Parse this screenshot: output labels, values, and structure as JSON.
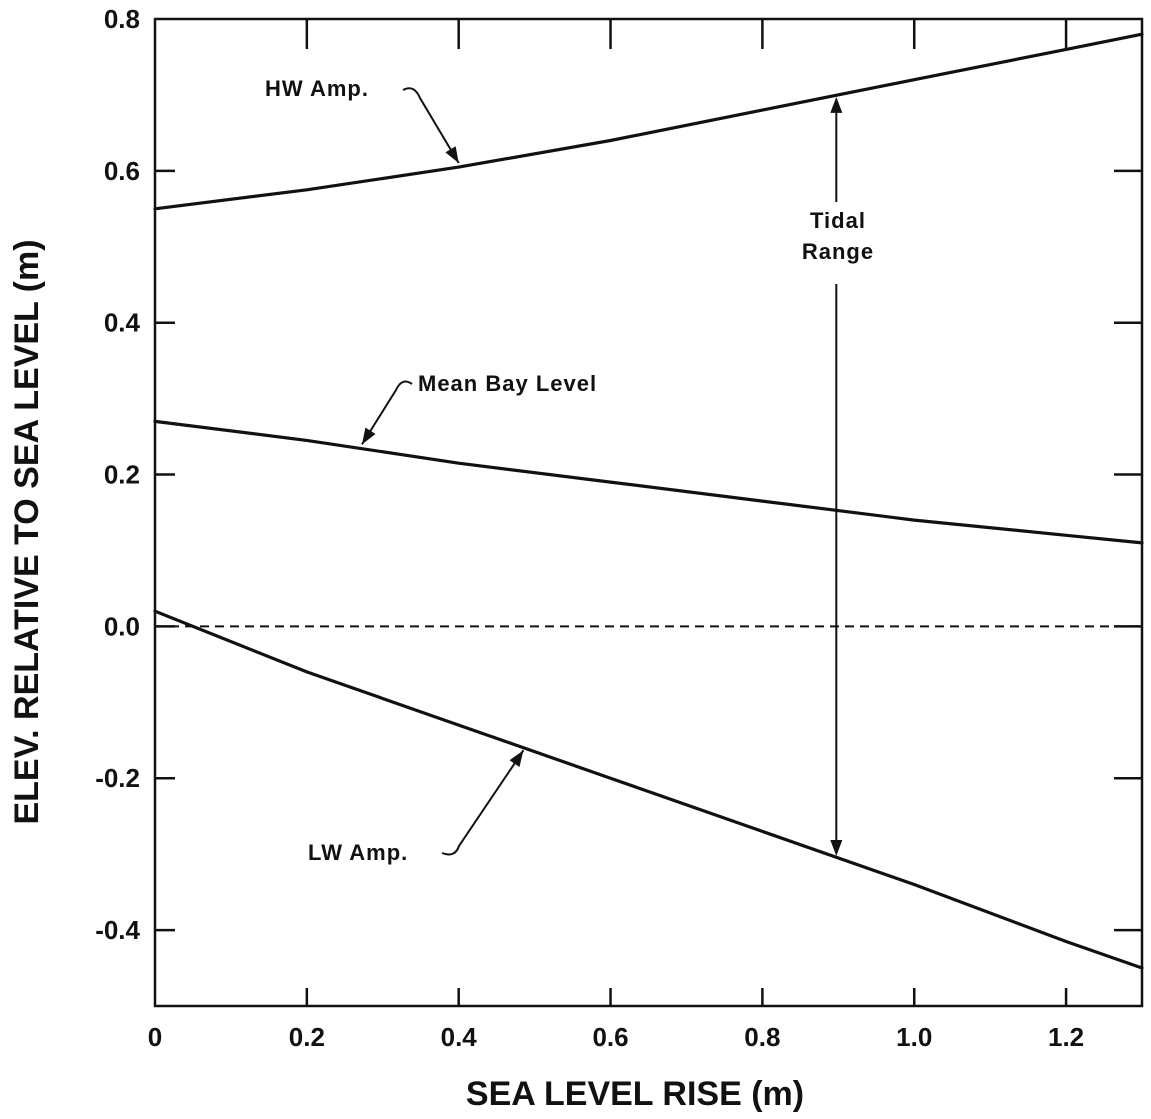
{
  "chart_data": {
    "type": "line",
    "title": "",
    "xlabel": "SEA LEVEL RISE (m)",
    "ylabel": "ELEV. RELATIVE TO SEA LEVEL (m)",
    "xlim": [
      0,
      1.3
    ],
    "ylim": [
      -0.5,
      0.8
    ],
    "x_ticks": [
      "0",
      "0.2",
      "0.4",
      "0.6",
      "0.8",
      "1.0",
      "1.2"
    ],
    "y_ticks": [
      "0.8",
      "0.6",
      "0.4",
      "0.2",
      "0.0",
      "-0.2",
      "-0.4"
    ],
    "grid": false,
    "series": [
      {
        "name": "HW Amp.",
        "x": [
          0,
          0.2,
          0.4,
          0.6,
          0.8,
          1.0,
          1.2,
          1.3
        ],
        "y": [
          0.55,
          0.575,
          0.605,
          0.64,
          0.68,
          0.72,
          0.76,
          0.78
        ]
      },
      {
        "name": "Mean Bay Level",
        "x": [
          0,
          0.2,
          0.4,
          0.6,
          0.8,
          1.0,
          1.2,
          1.3
        ],
        "y": [
          0.27,
          0.245,
          0.215,
          0.19,
          0.165,
          0.14,
          0.12,
          0.11
        ]
      },
      {
        "name": "LW Amp.",
        "x": [
          0,
          0.2,
          0.4,
          0.6,
          0.8,
          1.0,
          1.2,
          1.3
        ],
        "y": [
          0.02,
          -0.06,
          -0.13,
          -0.2,
          -0.27,
          -0.34,
          -0.415,
          -0.45
        ]
      }
    ],
    "reference_line": {
      "y": 0.0,
      "style": "dashed"
    },
    "annotations": [
      {
        "text": "HW Amp.",
        "target_series": "HW Amp.",
        "at_x": 0.4
      },
      {
        "text": "Mean Bay Level",
        "target_series": "Mean Bay Level",
        "at_x": 0.27
      },
      {
        "text": "LW Amp.",
        "target_series": "LW Amp.",
        "at_x": 0.48
      },
      {
        "text_lines": [
          "Tidal",
          "Range"
        ],
        "kind": "double-arrow",
        "at_x": 0.9,
        "from_series": "LW Amp.",
        "to_series": "HW Amp."
      }
    ]
  }
}
